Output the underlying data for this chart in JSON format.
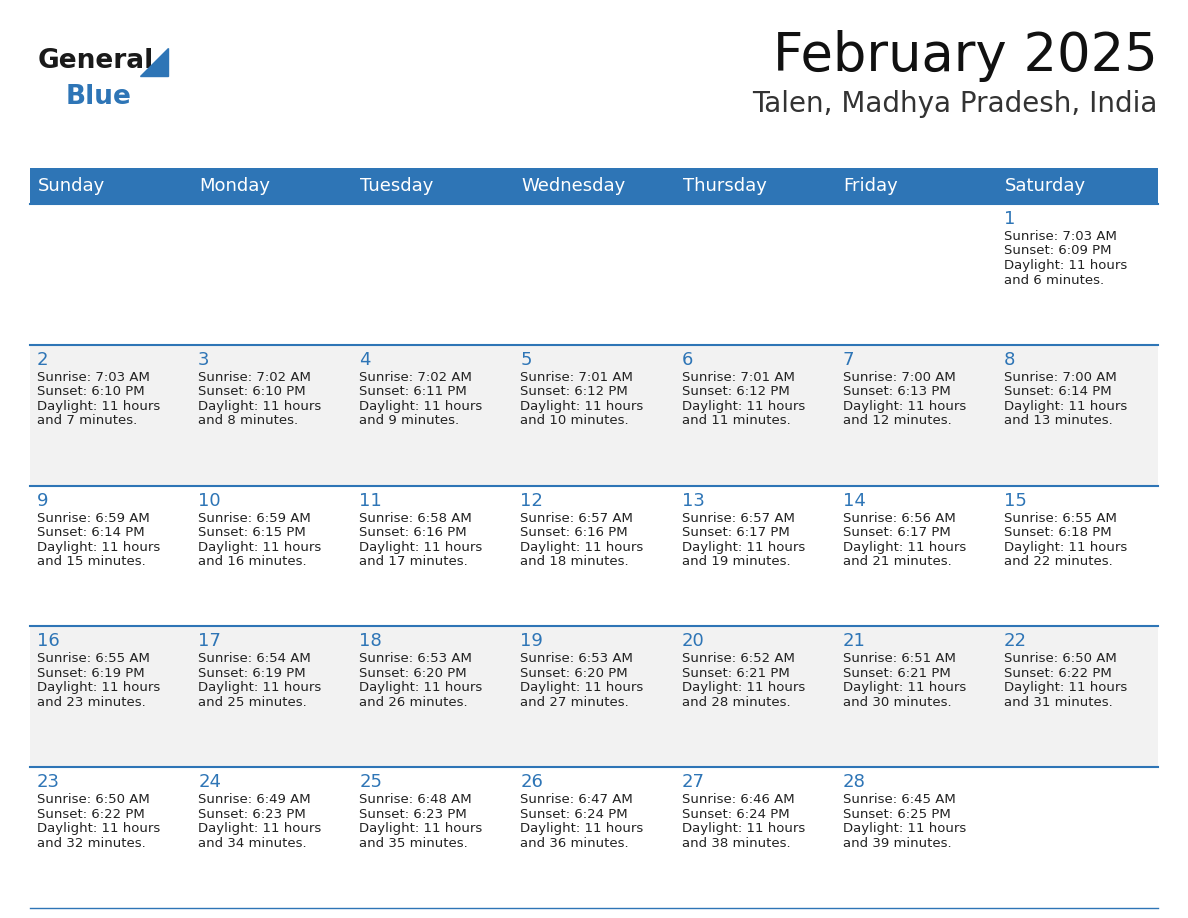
{
  "title": "February 2025",
  "subtitle": "Talen, Madhya Pradesh, India",
  "header_color": "#2E75B6",
  "header_text_color": "#FFFFFF",
  "day_names": [
    "Sunday",
    "Monday",
    "Tuesday",
    "Wednesday",
    "Thursday",
    "Friday",
    "Saturday"
  ],
  "title_fontsize": 38,
  "subtitle_fontsize": 20,
  "header_fontsize": 13,
  "cell_day_fontsize": 13,
  "cell_info_fontsize": 9.5,
  "logo_general_color": "#1a1a1a",
  "logo_blue_color": "#2E75B6",
  "background_color": "#FFFFFF",
  "alt_row_color": "#F2F2F2",
  "line_color": "#2E75B6",
  "days_data": [
    {
      "day": 1,
      "col": 6,
      "row": 0,
      "sunrise": "7:03 AM",
      "sunset": "6:09 PM",
      "daylight": "11 hours and 6 minutes."
    },
    {
      "day": 2,
      "col": 0,
      "row": 1,
      "sunrise": "7:03 AM",
      "sunset": "6:10 PM",
      "daylight": "11 hours and 7 minutes."
    },
    {
      "day": 3,
      "col": 1,
      "row": 1,
      "sunrise": "7:02 AM",
      "sunset": "6:10 PM",
      "daylight": "11 hours and 8 minutes."
    },
    {
      "day": 4,
      "col": 2,
      "row": 1,
      "sunrise": "7:02 AM",
      "sunset": "6:11 PM",
      "daylight": "11 hours and 9 minutes."
    },
    {
      "day": 5,
      "col": 3,
      "row": 1,
      "sunrise": "7:01 AM",
      "sunset": "6:12 PM",
      "daylight": "11 hours and 10 minutes."
    },
    {
      "day": 6,
      "col": 4,
      "row": 1,
      "sunrise": "7:01 AM",
      "sunset": "6:12 PM",
      "daylight": "11 hours and 11 minutes."
    },
    {
      "day": 7,
      "col": 5,
      "row": 1,
      "sunrise": "7:00 AM",
      "sunset": "6:13 PM",
      "daylight": "11 hours and 12 minutes."
    },
    {
      "day": 8,
      "col": 6,
      "row": 1,
      "sunrise": "7:00 AM",
      "sunset": "6:14 PM",
      "daylight": "11 hours and 13 minutes."
    },
    {
      "day": 9,
      "col": 0,
      "row": 2,
      "sunrise": "6:59 AM",
      "sunset": "6:14 PM",
      "daylight": "11 hours and 15 minutes."
    },
    {
      "day": 10,
      "col": 1,
      "row": 2,
      "sunrise": "6:59 AM",
      "sunset": "6:15 PM",
      "daylight": "11 hours and 16 minutes."
    },
    {
      "day": 11,
      "col": 2,
      "row": 2,
      "sunrise": "6:58 AM",
      "sunset": "6:16 PM",
      "daylight": "11 hours and 17 minutes."
    },
    {
      "day": 12,
      "col": 3,
      "row": 2,
      "sunrise": "6:57 AM",
      "sunset": "6:16 PM",
      "daylight": "11 hours and 18 minutes."
    },
    {
      "day": 13,
      "col": 4,
      "row": 2,
      "sunrise": "6:57 AM",
      "sunset": "6:17 PM",
      "daylight": "11 hours and 19 minutes."
    },
    {
      "day": 14,
      "col": 5,
      "row": 2,
      "sunrise": "6:56 AM",
      "sunset": "6:17 PM",
      "daylight": "11 hours and 21 minutes."
    },
    {
      "day": 15,
      "col": 6,
      "row": 2,
      "sunrise": "6:55 AM",
      "sunset": "6:18 PM",
      "daylight": "11 hours and 22 minutes."
    },
    {
      "day": 16,
      "col": 0,
      "row": 3,
      "sunrise": "6:55 AM",
      "sunset": "6:19 PM",
      "daylight": "11 hours and 23 minutes."
    },
    {
      "day": 17,
      "col": 1,
      "row": 3,
      "sunrise": "6:54 AM",
      "sunset": "6:19 PM",
      "daylight": "11 hours and 25 minutes."
    },
    {
      "day": 18,
      "col": 2,
      "row": 3,
      "sunrise": "6:53 AM",
      "sunset": "6:20 PM",
      "daylight": "11 hours and 26 minutes."
    },
    {
      "day": 19,
      "col": 3,
      "row": 3,
      "sunrise": "6:53 AM",
      "sunset": "6:20 PM",
      "daylight": "11 hours and 27 minutes."
    },
    {
      "day": 20,
      "col": 4,
      "row": 3,
      "sunrise": "6:52 AM",
      "sunset": "6:21 PM",
      "daylight": "11 hours and 28 minutes."
    },
    {
      "day": 21,
      "col": 5,
      "row": 3,
      "sunrise": "6:51 AM",
      "sunset": "6:21 PM",
      "daylight": "11 hours and 30 minutes."
    },
    {
      "day": 22,
      "col": 6,
      "row": 3,
      "sunrise": "6:50 AM",
      "sunset": "6:22 PM",
      "daylight": "11 hours and 31 minutes."
    },
    {
      "day": 23,
      "col": 0,
      "row": 4,
      "sunrise": "6:50 AM",
      "sunset": "6:22 PM",
      "daylight": "11 hours and 32 minutes."
    },
    {
      "day": 24,
      "col": 1,
      "row": 4,
      "sunrise": "6:49 AM",
      "sunset": "6:23 PM",
      "daylight": "11 hours and 34 minutes."
    },
    {
      "day": 25,
      "col": 2,
      "row": 4,
      "sunrise": "6:48 AM",
      "sunset": "6:23 PM",
      "daylight": "11 hours and 35 minutes."
    },
    {
      "day": 26,
      "col": 3,
      "row": 4,
      "sunrise": "6:47 AM",
      "sunset": "6:24 PM",
      "daylight": "11 hours and 36 minutes."
    },
    {
      "day": 27,
      "col": 4,
      "row": 4,
      "sunrise": "6:46 AM",
      "sunset": "6:24 PM",
      "daylight": "11 hours and 38 minutes."
    },
    {
      "day": 28,
      "col": 5,
      "row": 4,
      "sunrise": "6:45 AM",
      "sunset": "6:25 PM",
      "daylight": "11 hours and 39 minutes."
    }
  ]
}
